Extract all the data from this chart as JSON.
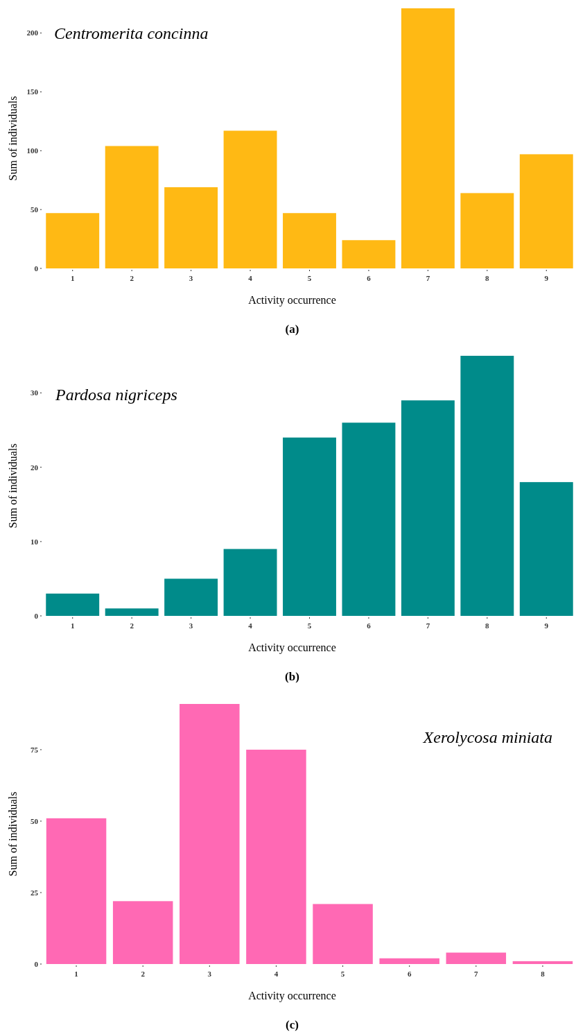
{
  "chart_data": [
    {
      "type": "bar",
      "title": "Centromerita concinna",
      "xlabel": "Activity occurrence",
      "ylabel": "Sum of individuals",
      "annotations": [
        "(a)"
      ],
      "categories": [
        "1",
        "2",
        "3",
        "4",
        "5",
        "6",
        "7",
        "8",
        "9"
      ],
      "values": [
        47,
        104,
        69,
        117,
        47,
        24,
        221,
        64,
        97
      ],
      "color": "#ffb914",
      "ylim": [
        0,
        221
      ],
      "yticks": [
        0,
        50,
        100,
        150,
        200
      ],
      "grid": false
    },
    {
      "type": "bar",
      "title": "Pardosa nigriceps",
      "xlabel": "Activity occurrence",
      "ylabel": "Sum of individuals",
      "annotations": [
        "(b)"
      ],
      "categories": [
        "1",
        "2",
        "3",
        "4",
        "5",
        "6",
        "7",
        "8",
        "9"
      ],
      "values": [
        3,
        1,
        5,
        9,
        24,
        26,
        29,
        35,
        18
      ],
      "color": "#008b8a",
      "ylim": [
        0,
        35
      ],
      "yticks": [
        0,
        10,
        20,
        30
      ],
      "grid": false
    },
    {
      "type": "bar",
      "title": "Xerolycosa miniata",
      "xlabel": "Activity occurrence",
      "ylabel": "Sum of individuals",
      "annotations": [
        "(c)"
      ],
      "categories": [
        "1",
        "2",
        "3",
        "4",
        "5",
        "6",
        "7",
        "8"
      ],
      "values": [
        51,
        22,
        91,
        75,
        21,
        2,
        4,
        1
      ],
      "color": "#ff69b4",
      "ylim": [
        0,
        91
      ],
      "yticks": [
        0,
        25,
        50,
        75
      ],
      "grid": false
    }
  ]
}
